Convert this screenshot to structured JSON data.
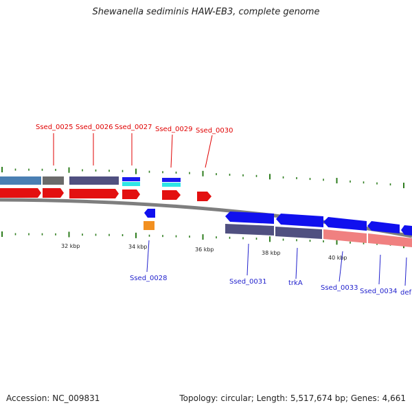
{
  "title": "Shewanella sediminis HAW-EB3, complete genome",
  "footer": {
    "accession": "Accession: NC_009831",
    "summary": "Topology: circular; Length: 5,517,674 bp; Genes: 4,661"
  },
  "colors": {
    "forward_cds": "#e31010",
    "reverse_cds": "#1010ee",
    "backbone": "#8a8a8a",
    "tick": "#2e7d1e",
    "label_top": "#e00000",
    "label_bottom": "#1f1fcc"
  },
  "top_labels": [
    "Ssed_0025",
    "Ssed_0026",
    "Ssed_0027",
    "Ssed_0029",
    "Ssed_0030"
  ],
  "bottom_labels": [
    "Ssed_0028",
    "Ssed_0031",
    "trkA",
    "Ssed_0033",
    "Ssed_0034",
    "def"
  ],
  "kbp_labels": [
    "32 kbp",
    "34 kbp",
    "36 kbp",
    "38 kbp",
    "40 kbp"
  ]
}
